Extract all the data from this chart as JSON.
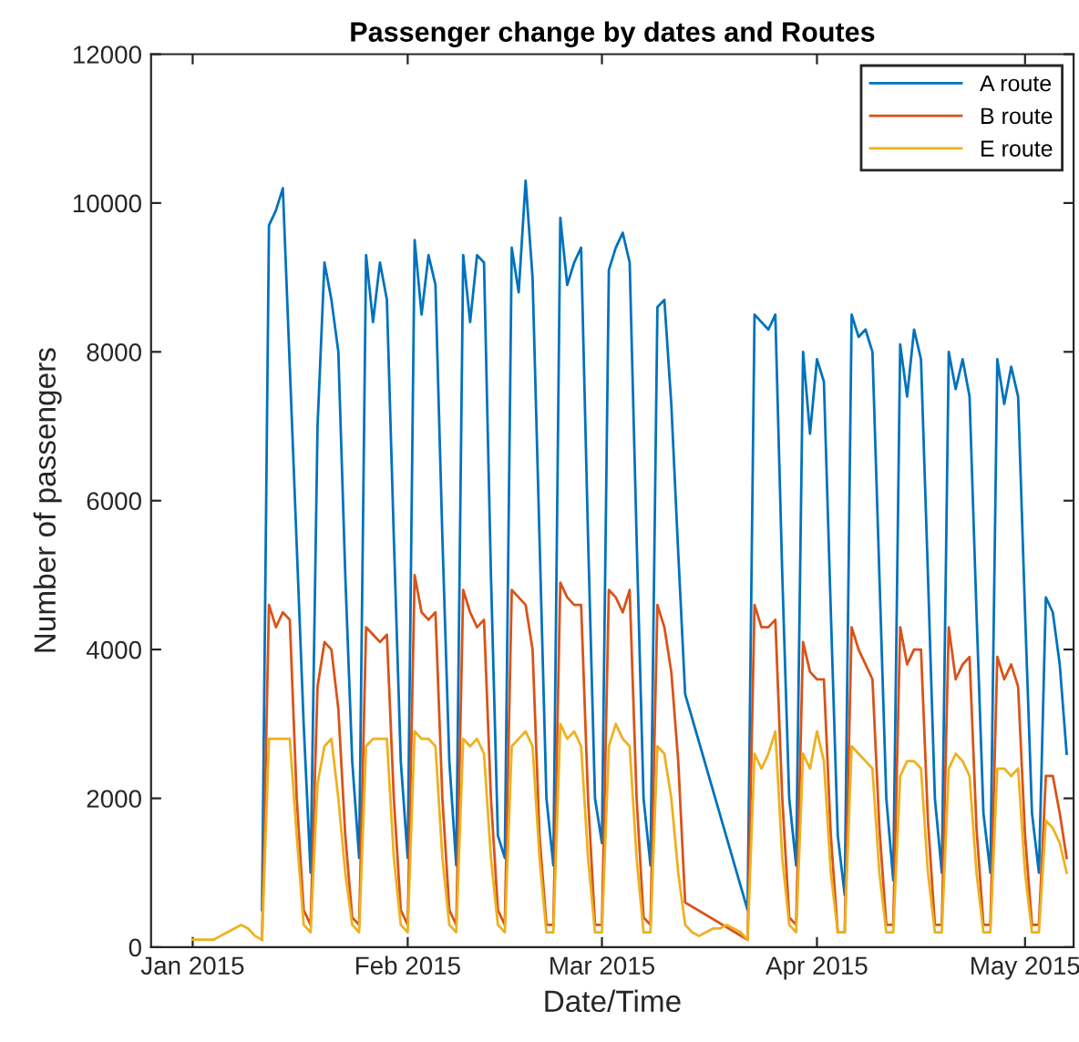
{
  "chart_data": {
    "type": "line",
    "title": "Passenger change by dates and Routes",
    "xlabel": "Date/Time",
    "ylabel": "Number of passengers",
    "xlim": [
      "2014-12-26",
      "2015-05-08"
    ],
    "ylim": [
      0,
      12000
    ],
    "xticks": [
      {
        "value": "2015-01-01",
        "label": "Jan 2015"
      },
      {
        "value": "2015-02-01",
        "label": "Feb 2015"
      },
      {
        "value": "2015-03-01",
        "label": "Mar 2015"
      },
      {
        "value": "2015-04-01",
        "label": "Apr 2015"
      },
      {
        "value": "2015-05-01",
        "label": "May 2015"
      }
    ],
    "yticks": [
      0,
      2000,
      4000,
      6000,
      8000,
      10000,
      12000
    ],
    "grid": false,
    "legend": "top right",
    "marker": "none",
    "line_style": "solid",
    "x": [
      "2015-01-11",
      "2015-01-12",
      "2015-01-13",
      "2015-01-14",
      "2015-01-15",
      "2015-01-16",
      "2015-01-17",
      "2015-01-18",
      "2015-01-19",
      "2015-01-20",
      "2015-01-21",
      "2015-01-22",
      "2015-01-23",
      "2015-01-24",
      "2015-01-25",
      "2015-01-26",
      "2015-01-27",
      "2015-01-28",
      "2015-01-29",
      "2015-01-30",
      "2015-01-31",
      "2015-02-01",
      "2015-02-02",
      "2015-02-03",
      "2015-02-04",
      "2015-02-05",
      "2015-02-06",
      "2015-02-07",
      "2015-02-08",
      "2015-02-09",
      "2015-02-10",
      "2015-02-11",
      "2015-02-12",
      "2015-02-13",
      "2015-02-14",
      "2015-02-15",
      "2015-02-16",
      "2015-02-17",
      "2015-02-18",
      "2015-02-19",
      "2015-02-20",
      "2015-02-21",
      "2015-02-22",
      "2015-02-23",
      "2015-02-24",
      "2015-02-25",
      "2015-02-26",
      "2015-02-27",
      "2015-02-28",
      "2015-03-01",
      "2015-03-02",
      "2015-03-03",
      "2015-03-04",
      "2015-03-05",
      "2015-03-06",
      "2015-03-07",
      "2015-03-08",
      "2015-03-09",
      "2015-03-10",
      "2015-03-11",
      "2015-03-12",
      "2015-03-13",
      "2015-03-22",
      "2015-03-23",
      "2015-03-24",
      "2015-03-25",
      "2015-03-26",
      "2015-03-27",
      "2015-03-28",
      "2015-03-29",
      "2015-03-30",
      "2015-03-31",
      "2015-04-01",
      "2015-04-02",
      "2015-04-03",
      "2015-04-04",
      "2015-04-05",
      "2015-04-06",
      "2015-04-07",
      "2015-04-08",
      "2015-04-09",
      "2015-04-10",
      "2015-04-11",
      "2015-04-12",
      "2015-04-13",
      "2015-04-14",
      "2015-04-15",
      "2015-04-16",
      "2015-04-17",
      "2015-04-18",
      "2015-04-19",
      "2015-04-20",
      "2015-04-21",
      "2015-04-22",
      "2015-04-23",
      "2015-04-24",
      "2015-04-25",
      "2015-04-26",
      "2015-04-27",
      "2015-04-28",
      "2015-04-29",
      "2015-04-30",
      "2015-05-01",
      "2015-05-02",
      "2015-05-03",
      "2015-05-04",
      "2015-05-05",
      "2015-05-06",
      "2015-05-07"
    ],
    "series": [
      {
        "name": "A route",
        "color": "#0072bd",
        "values": [
          500,
          9700,
          9900,
          10200,
          7800,
          5400,
          3000,
          1000,
          7000,
          9200,
          8700,
          8000,
          5000,
          2500,
          1200,
          9300,
          8400,
          9200,
          8700,
          5500,
          2500,
          1200,
          9500,
          8500,
          9300,
          8900,
          5500,
          2500,
          1100,
          9300,
          8400,
          9300,
          9200,
          5000,
          1500,
          1200,
          9400,
          8800,
          10300,
          9000,
          5500,
          2000,
          1100,
          9800,
          8900,
          9200,
          9400,
          5500,
          2000,
          1400,
          9100,
          9400,
          9600,
          9200,
          5500,
          2000,
          1100,
          8600,
          8700,
          7300,
          5300,
          3400,
          500,
          8500,
          8400,
          8300,
          8500,
          5000,
          2000,
          1100,
          8000,
          6900,
          7900,
          7600,
          4500,
          1500,
          700,
          8500,
          8200,
          8300,
          8000,
          5000,
          2000,
          900,
          8100,
          7400,
          8300,
          7900,
          5000,
          2000,
          1000,
          8000,
          7500,
          7900,
          7400,
          4500,
          1800,
          1000,
          7900,
          7300,
          7800,
          7400,
          4500,
          1800,
          1000,
          4700,
          4500,
          3800,
          2600
        ]
      },
      {
        "name": "B route",
        "color": "#d95319",
        "values": [
          100,
          4600,
          4300,
          4500,
          4400,
          2000,
          500,
          300,
          3500,
          4100,
          4000,
          3200,
          1500,
          400,
          300,
          4300,
          4200,
          4100,
          4200,
          2000,
          500,
          300,
          5000,
          4500,
          4400,
          4500,
          2000,
          500,
          300,
          4800,
          4500,
          4300,
          4400,
          2000,
          500,
          300,
          4800,
          4700,
          4600,
          4000,
          1500,
          300,
          300,
          4900,
          4700,
          4600,
          4600,
          2000,
          300,
          300,
          4800,
          4700,
          4500,
          4800,
          2000,
          400,
          300,
          4600,
          4300,
          3700,
          2500,
          600,
          100,
          4600,
          4300,
          4300,
          4400,
          2000,
          400,
          300,
          4100,
          3700,
          3600,
          3600,
          1500,
          200,
          200,
          4300,
          4000,
          3800,
          3600,
          1600,
          300,
          300,
          4300,
          3800,
          4000,
          4000,
          1700,
          300,
          300,
          4300,
          3600,
          3800,
          3900,
          1600,
          300,
          300,
          3900,
          3600,
          3800,
          3500,
          1500,
          300,
          300,
          2300,
          2300,
          1800,
          1200
        ]
      },
      {
        "name": "E route",
        "color": "#edb120",
        "x": [
          "2015-01-01",
          "2015-01-02",
          "2015-01-03",
          "2015-01-04",
          "2015-01-05",
          "2015-01-06",
          "2015-01-07",
          "2015-01-08",
          "2015-01-09",
          "2015-01-10",
          "2015-01-11",
          "2015-01-12",
          "2015-01-13",
          "2015-01-14",
          "2015-01-15",
          "2015-01-16",
          "2015-01-17",
          "2015-01-18",
          "2015-01-19",
          "2015-01-20",
          "2015-01-21",
          "2015-01-22",
          "2015-01-23",
          "2015-01-24",
          "2015-01-25",
          "2015-01-26",
          "2015-01-27",
          "2015-01-28",
          "2015-01-29",
          "2015-01-30",
          "2015-01-31",
          "2015-02-01",
          "2015-02-02",
          "2015-02-03",
          "2015-02-04",
          "2015-02-05",
          "2015-02-06",
          "2015-02-07",
          "2015-02-08",
          "2015-02-09",
          "2015-02-10",
          "2015-02-11",
          "2015-02-12",
          "2015-02-13",
          "2015-02-14",
          "2015-02-15",
          "2015-02-16",
          "2015-02-17",
          "2015-02-18",
          "2015-02-19",
          "2015-02-20",
          "2015-02-21",
          "2015-02-22",
          "2015-02-23",
          "2015-02-24",
          "2015-02-25",
          "2015-02-26",
          "2015-02-27",
          "2015-02-28",
          "2015-03-01",
          "2015-03-02",
          "2015-03-03",
          "2015-03-04",
          "2015-03-05",
          "2015-03-06",
          "2015-03-07",
          "2015-03-08",
          "2015-03-09",
          "2015-03-10",
          "2015-03-11",
          "2015-03-12",
          "2015-03-13",
          "2015-03-14",
          "2015-03-15",
          "2015-03-16",
          "2015-03-17",
          "2015-03-18",
          "2015-03-19",
          "2015-03-20",
          "2015-03-21",
          "2015-03-22",
          "2015-03-23",
          "2015-03-24",
          "2015-03-25",
          "2015-03-26",
          "2015-03-27",
          "2015-03-28",
          "2015-03-29",
          "2015-03-30",
          "2015-03-31",
          "2015-04-01",
          "2015-04-02",
          "2015-04-03",
          "2015-04-04",
          "2015-04-05",
          "2015-04-06",
          "2015-04-07",
          "2015-04-08",
          "2015-04-09",
          "2015-04-10",
          "2015-04-11",
          "2015-04-12",
          "2015-04-13",
          "2015-04-14",
          "2015-04-15",
          "2015-04-16",
          "2015-04-17",
          "2015-04-18",
          "2015-04-19",
          "2015-04-20",
          "2015-04-21",
          "2015-04-22",
          "2015-04-23",
          "2015-04-24",
          "2015-04-25",
          "2015-04-26",
          "2015-04-27",
          "2015-04-28",
          "2015-04-29",
          "2015-04-30",
          "2015-05-01",
          "2015-05-02",
          "2015-05-03",
          "2015-05-04",
          "2015-05-05",
          "2015-05-06",
          "2015-05-07"
        ],
        "values": [
          100,
          100,
          100,
          100,
          150,
          200,
          250,
          300,
          250,
          150,
          100,
          2800,
          2800,
          2800,
          2800,
          1500,
          300,
          200,
          2200,
          2700,
          2800,
          2000,
          1000,
          300,
          200,
          2700,
          2800,
          2800,
          2800,
          1200,
          300,
          200,
          2900,
          2800,
          2800,
          2700,
          1200,
          300,
          200,
          2800,
          2700,
          2800,
          2600,
          1200,
          300,
          200,
          2700,
          2800,
          2900,
          2700,
          1200,
          200,
          200,
          3000,
          2800,
          2900,
          2700,
          1200,
          200,
          200,
          2700,
          3000,
          2800,
          2700,
          1200,
          200,
          200,
          2700,
          2600,
          2000,
          1000,
          300,
          200,
          150,
          200,
          250,
          250,
          300,
          250,
          200,
          100,
          2600,
          2400,
          2600,
          2900,
          1200,
          300,
          200,
          2600,
          2400,
          2900,
          2500,
          1000,
          200,
          200,
          2700,
          2600,
          2500,
          2400,
          1000,
          200,
          200,
          2300,
          2500,
          2500,
          2400,
          1000,
          200,
          200,
          2400,
          2600,
          2500,
          2300,
          1000,
          200,
          200,
          2400,
          2400,
          2300,
          2400,
          1000,
          200,
          200,
          1700,
          1600,
          1400,
          1000
        ]
      }
    ]
  }
}
